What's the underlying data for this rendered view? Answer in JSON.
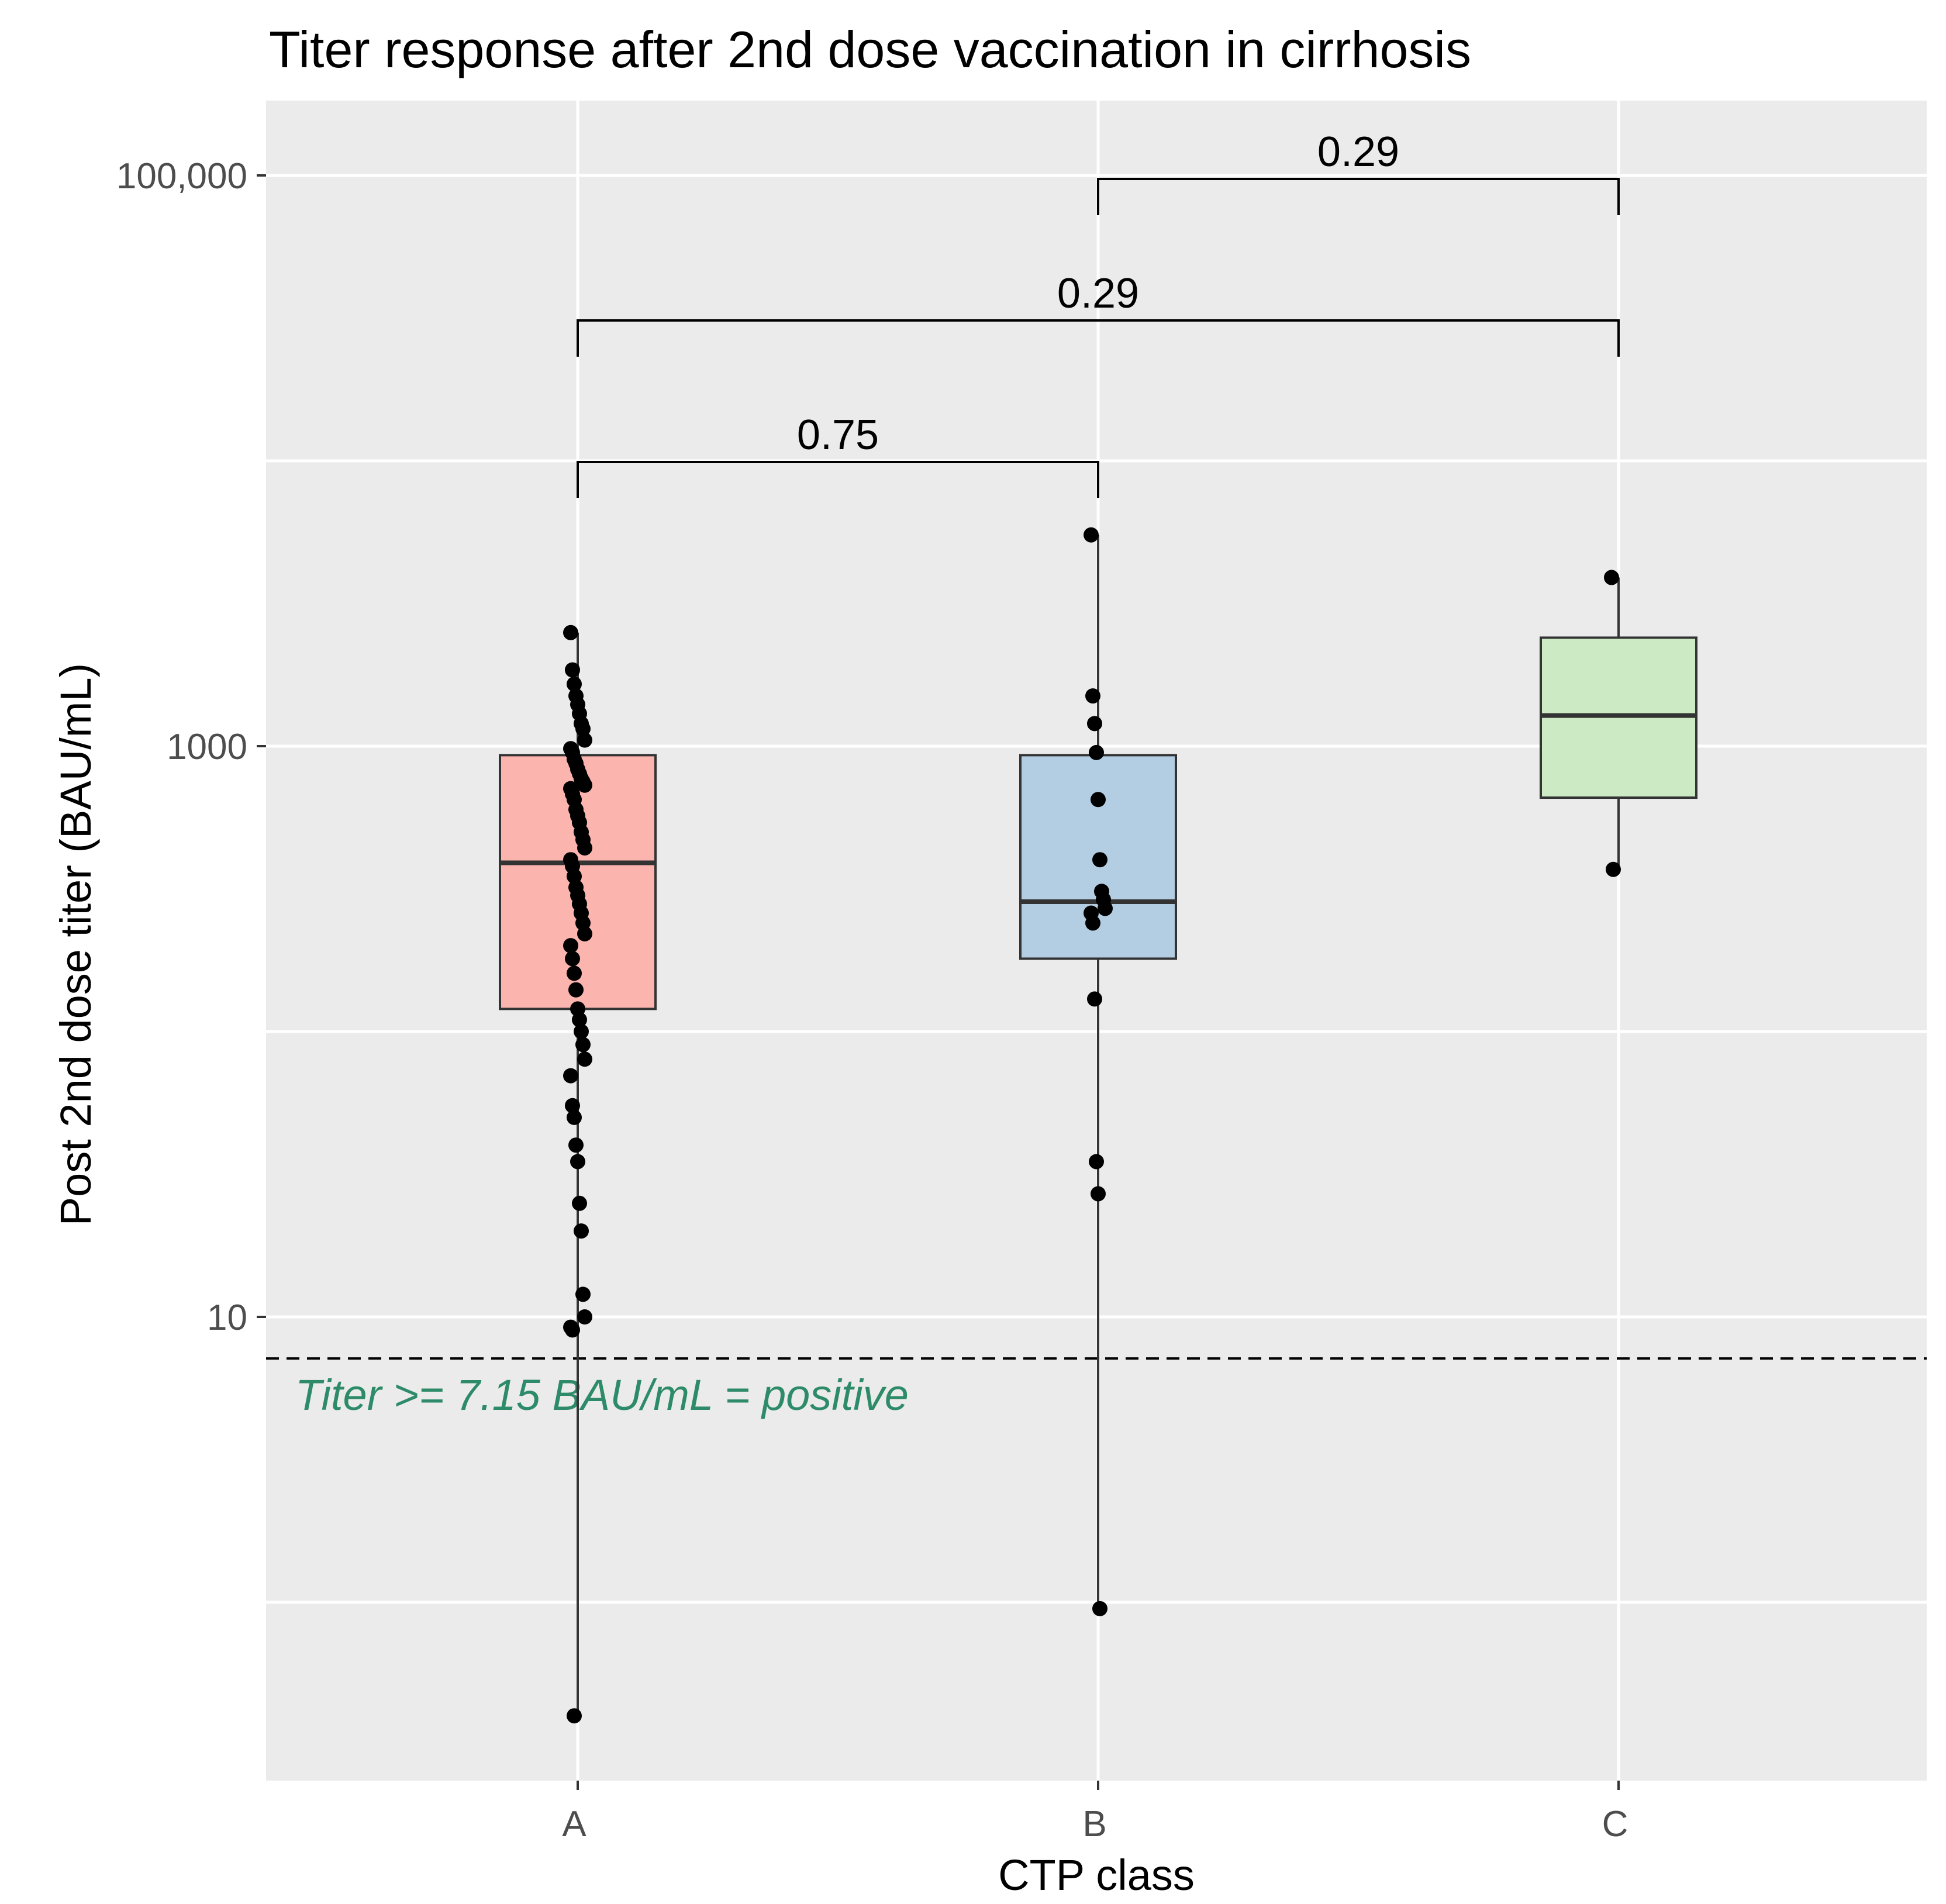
{
  "chart_data": {
    "type": "boxplot",
    "title": "Titer response after 2nd dose vaccination in cirrhosis",
    "xlabel": "CTP class",
    "ylabel": "Post 2nd dose titer (BAU/mL)",
    "y_scale": "log10",
    "ylim": [
      0.2,
      200000
    ],
    "y_tick_labels": [
      {
        "value": 10,
        "label": "10"
      },
      {
        "value": 1000,
        "label": "1000"
      },
      {
        "value": 100000,
        "label": "100,000"
      }
    ],
    "y_minor_gridlines": [
      1,
      100,
      10000
    ],
    "categories": [
      "A",
      "B",
      "C"
    ],
    "groups": [
      {
        "name": "A",
        "color": "#fbb4ae",
        "box": {
          "q1": 120,
          "median": 390,
          "q3": 930,
          "whisker_low": 0.4,
          "whisker_high": 2500
        },
        "points": [
          2500,
          1850,
          1650,
          1500,
          1400,
          1300,
          1200,
          1150,
          1050,
          980,
          950,
          900,
          870,
          830,
          800,
          770,
          750,
          730,
          710,
          680,
          650,
          600,
          570,
          540,
          500,
          470,
          440,
          400,
          380,
          350,
          320,
          300,
          280,
          260,
          240,
          220,
          200,
          180,
          160,
          140,
          120,
          110,
          100,
          90,
          80,
          70,
          55,
          50,
          40,
          35,
          25,
          20,
          12,
          10,
          9.2,
          9.0,
          0.4
        ]
      },
      {
        "name": "B",
        "color": "#b3cde3",
        "box": {
          "q1": 180,
          "median": 285,
          "q3": 930,
          "whisker_low": 0.95,
          "whisker_high": 5500
        },
        "points": [
          5500,
          1500,
          1200,
          950,
          650,
          400,
          310,
          290,
          270,
          260,
          240,
          130,
          35,
          27,
          0.95
        ]
      },
      {
        "name": "C",
        "color": "#ccebc5",
        "box": {
          "q1": 660,
          "median": 1280,
          "q3": 2400,
          "whisker_low": 370,
          "whisker_high": 3900
        },
        "points": [
          3900,
          370
        ]
      }
    ],
    "comparisons": [
      {
        "pair": [
          "A",
          "B"
        ],
        "p": "0.75"
      },
      {
        "pair": [
          "A",
          "C"
        ],
        "p": "0.29"
      },
      {
        "pair": [
          "B",
          "C"
        ],
        "p": "0.29"
      }
    ],
    "threshold": {
      "value": 7.15,
      "label": "Titer >= 7.15 BAU/mL = positive",
      "color": "#2e8b6a"
    },
    "grid": true,
    "background": "#ebebeb"
  }
}
